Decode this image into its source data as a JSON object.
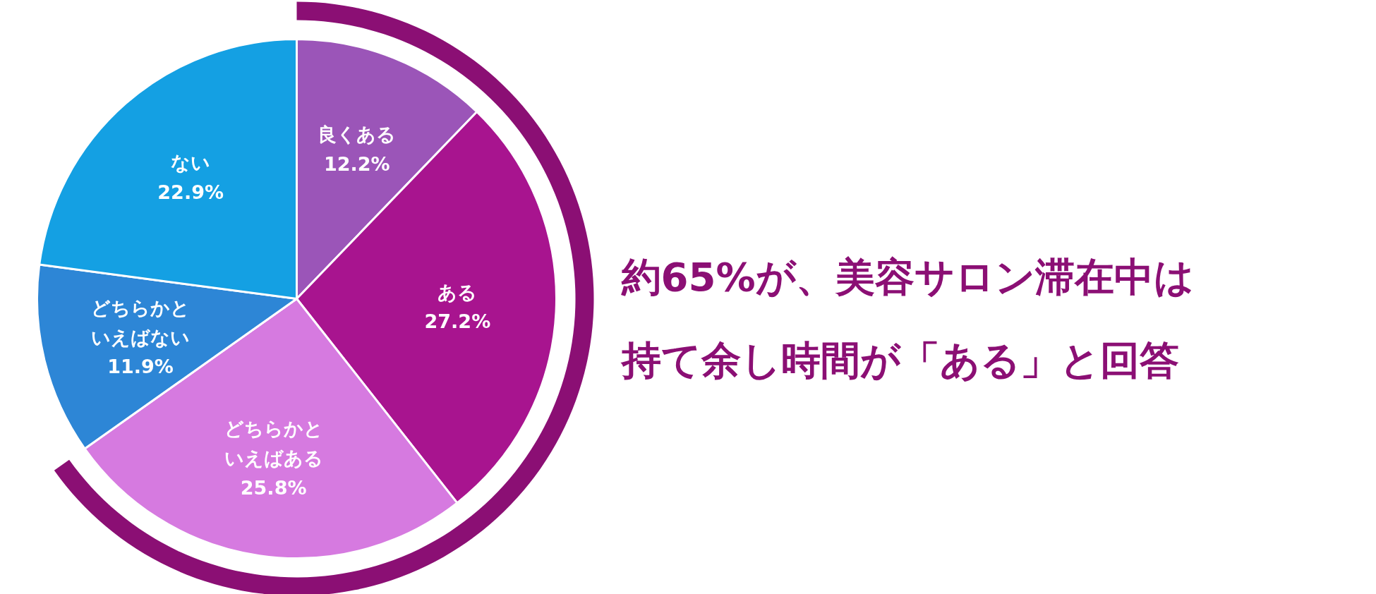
{
  "chart_data": {
    "type": "pie",
    "categories": [
      "良くある",
      "ある",
      "どちらかといえばある",
      "どちらかといえばない",
      "ない"
    ],
    "values": [
      12.2,
      27.2,
      25.8,
      11.9,
      22.9
    ],
    "colors": [
      "#9b55b8",
      "#a8148f",
      "#d67ae0",
      "#2d86d6",
      "#14a0e3"
    ],
    "value_labels": [
      "12.2%",
      "27.2%",
      "25.8%",
      "11.9%",
      "22.9%"
    ],
    "annotations": [
      "約65%が、美容サロン滞在中は",
      "持て余し時間が「ある」と回答"
    ]
  }
}
